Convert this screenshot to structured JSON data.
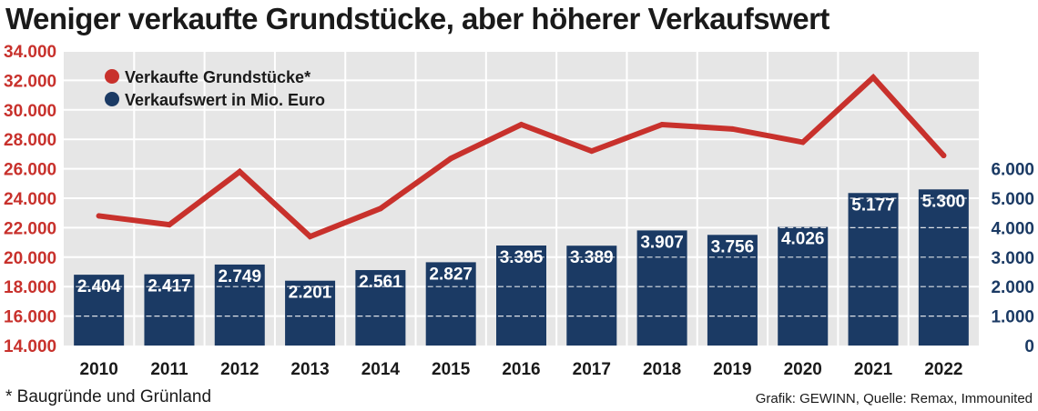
{
  "title": "Weniger verkaufte Grundstücke, aber höherer Verkaufswert",
  "footnote": "* Baugründe und Grünland",
  "source": "Grafik: GEWINN, Quelle: Remax, Immounited",
  "colors": {
    "line": "#c8312c",
    "bar": "#1b3a64",
    "plot_bg": "#e6e6e6",
    "grid": "#ffffff"
  },
  "chart_data": {
    "type": "bar",
    "categories": [
      "2010",
      "2011",
      "2012",
      "2013",
      "2014",
      "2015",
      "2016",
      "2017",
      "2018",
      "2019",
      "2020",
      "2021",
      "2022"
    ],
    "series": [
      {
        "name": "Verkaufte Grundstücke*",
        "type": "line",
        "axis": "left",
        "values": [
          22800,
          22200,
          25800,
          21400,
          23300,
          26700,
          29000,
          27200,
          29000,
          28700,
          27800,
          32200,
          26900
        ]
      },
      {
        "name": "Verkaufswert in Mio. Euro",
        "type": "bar",
        "axis": "right",
        "values": [
          2404,
          2417,
          2749,
          2201,
          2561,
          2827,
          3395,
          3389,
          3907,
          3756,
          4026,
          5177,
          5300
        ],
        "labels": [
          "2.404",
          "2.417",
          "2.749",
          "2.201",
          "2.561",
          "2.827",
          "3.395",
          "3.389",
          "3.907",
          "3.756",
          "4.026",
          "5.177",
          "5.300"
        ]
      }
    ],
    "y_left": {
      "min": 14000,
      "max": 34000,
      "ticks": [
        14000,
        16000,
        18000,
        20000,
        22000,
        24000,
        26000,
        28000,
        30000,
        32000,
        34000
      ],
      "tick_labels": [
        "14.000",
        "16.000",
        "18.000",
        "20.000",
        "22.000",
        "24.000",
        "26.000",
        "28.000",
        "30.000",
        "32.000",
        "34.000"
      ]
    },
    "y_right": {
      "min": 0,
      "max": 6000,
      "ticks": [
        0,
        1000,
        2000,
        3000,
        4000,
        5000,
        6000
      ],
      "tick_labels": [
        "0",
        "1.000",
        "2.000",
        "3.000",
        "4.000",
        "5.000",
        "6.000"
      ]
    },
    "grid": true,
    "legend_position": "top-left"
  }
}
